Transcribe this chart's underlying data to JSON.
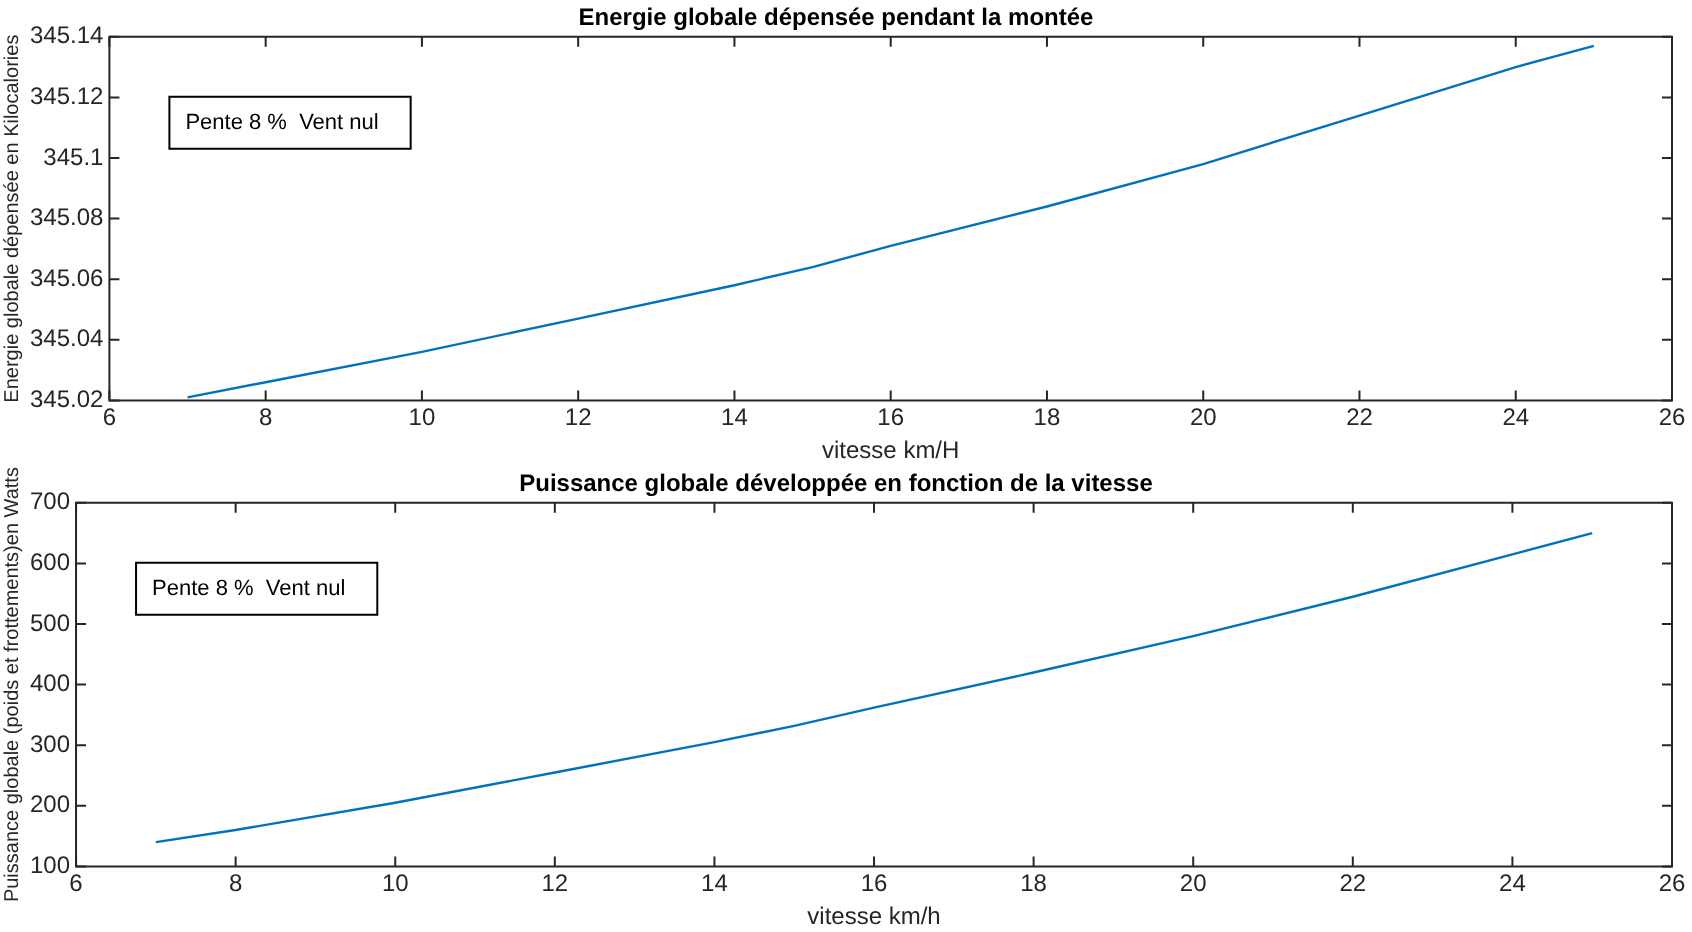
{
  "chart_data": [
    {
      "type": "line",
      "title": "Energie globale dépensée pendant la montée",
      "xlabel": "vitesse km/H",
      "ylabel": "Energie globale dépensée en Kilocalories",
      "annotations": [
        "Pente 8 %  Vent nul"
      ],
      "x": [
        7,
        8,
        10,
        12,
        14,
        15,
        16,
        18,
        20,
        22,
        24,
        25
      ],
      "series": [
        {
          "color": "#0072bd",
          "values": [
            345.021,
            345.026,
            345.036,
            345.047,
            345.058,
            345.064,
            345.071,
            345.084,
            345.098,
            345.114,
            345.13,
            345.137
          ]
        }
      ],
      "xlim": [
        6,
        26
      ],
      "xticks": [
        6,
        8,
        10,
        12,
        14,
        16,
        18,
        20,
        22,
        24,
        26
      ],
      "ylim": [
        345.02,
        345.14
      ],
      "yticks": [
        345.02,
        345.04,
        345.06,
        345.08,
        345.1,
        345.12,
        345.14
      ],
      "grid": false,
      "legend": false,
      "marker": "none",
      "line_style": "solid"
    },
    {
      "type": "line",
      "title": "Puissance globale développée en fonction de la vitesse",
      "xlabel": "vitesse km/h",
      "ylabel": "Puissance globale (poids et frottements)en Watts",
      "annotations": [
        "Pente 8 %  Vent nul"
      ],
      "x": [
        7,
        8,
        10,
        12,
        14,
        15,
        16,
        18,
        20,
        22,
        24,
        25
      ],
      "series": [
        {
          "color": "#0072bd",
          "values": [
            140,
            160,
            205,
            255,
            305,
            332,
            362,
            420,
            480,
            545,
            615,
            650
          ]
        }
      ],
      "xlim": [
        6,
        26
      ],
      "xticks": [
        6,
        8,
        10,
        12,
        14,
        16,
        18,
        20,
        22,
        24,
        26
      ],
      "ylim": [
        100,
        700
      ],
      "yticks": [
        100,
        200,
        300,
        400,
        500,
        600,
        700
      ],
      "grid": false,
      "legend": false,
      "marker": "none",
      "line_style": "solid"
    }
  ]
}
